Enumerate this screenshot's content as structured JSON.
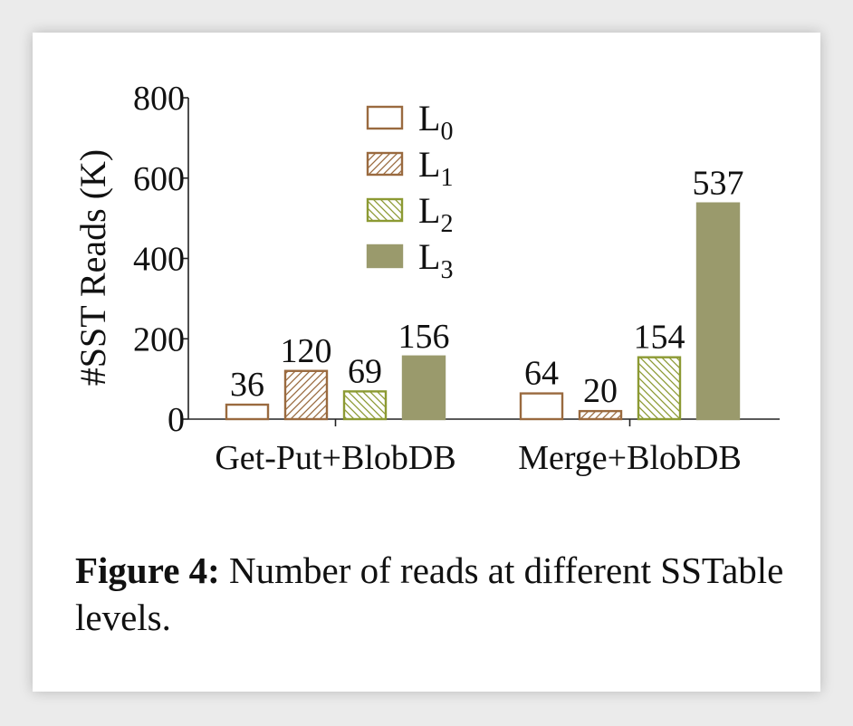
{
  "chart_data": {
    "type": "bar",
    "ylabel": "#SST Reads (K)",
    "xlabel": "",
    "ylim": [
      0,
      800
    ],
    "yticks": [
      0,
      200,
      400,
      600,
      800
    ],
    "categories": [
      "Get-Put+BlobDB",
      "Merge+BlobDB"
    ],
    "series": [
      {
        "name": "L",
        "sub": "0",
        "values": [
          36,
          64
        ],
        "style": "hollow",
        "color": "#9a6a3f"
      },
      {
        "name": "L",
        "sub": "1",
        "values": [
          120,
          20
        ],
        "style": "hatch-right",
        "color": "#9a6a3f"
      },
      {
        "name": "L",
        "sub": "2",
        "values": [
          69,
          154
        ],
        "style": "hatch-left",
        "color": "#8c9a33"
      },
      {
        "name": "L",
        "sub": "3",
        "values": [
          156,
          537
        ],
        "style": "solid",
        "color": "#9a9a6c"
      }
    ],
    "data_labels": [
      [
        "36",
        "120",
        "69",
        "156"
      ],
      [
        "64",
        "20",
        "154",
        "537"
      ]
    ],
    "legend": "top-center",
    "grid": false
  },
  "caption": {
    "label": "Figure 4:",
    "text": " Number of reads at different SSTable levels."
  }
}
